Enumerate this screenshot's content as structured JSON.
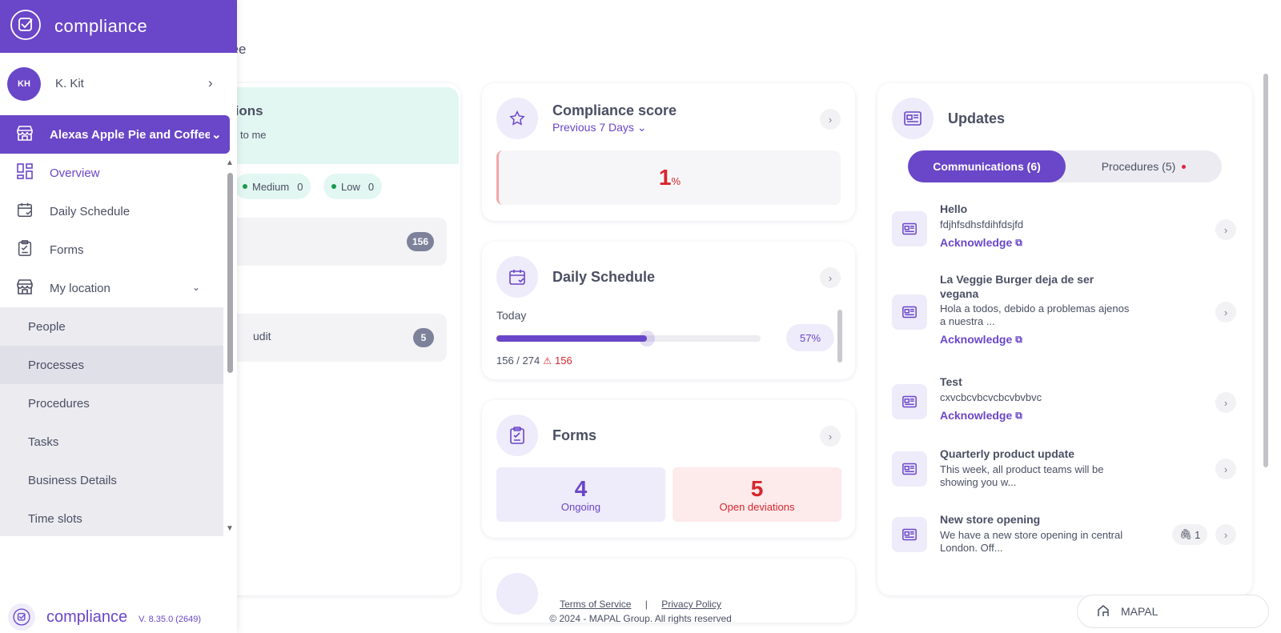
{
  "header": {
    "location_title_partial": "offee"
  },
  "notifications_card": {
    "title_partial": "tions",
    "subtitle_partial": "to me",
    "pills": [
      {
        "label": "Medium",
        "count": "0"
      },
      {
        "label": "Low",
        "count": "0"
      }
    ],
    "rows": [
      {
        "label": "",
        "count": "156"
      },
      {
        "label": "udit",
        "count": "5"
      }
    ]
  },
  "compliance_score": {
    "title": "Compliance score",
    "period": "Previous 7 Days",
    "value": "1",
    "unit": "%"
  },
  "daily_schedule": {
    "title": "Daily Schedule",
    "today_label": "Today",
    "progress": 0.57,
    "progress_label": "57%",
    "done_total": "156 / 274",
    "warning_count": "156"
  },
  "forms": {
    "title": "Forms",
    "ongoing_count": "4",
    "ongoing_label": "Ongoing",
    "deviations_count": "5",
    "deviations_label": "Open deviations"
  },
  "updates": {
    "title": "Updates",
    "tab_active": "Communications (6)",
    "tab_inactive": "Procedures (5)",
    "items": [
      {
        "title": "Hello",
        "body": "fdjhfsdhsfdihfdsjfd",
        "ack": "Acknowledge"
      },
      {
        "title": "La Veggie Burger deja de ser vegana",
        "body": "Hola a todos, debido a problemas ajenos a nuestra ...",
        "ack": "Acknowledge"
      },
      {
        "title": "Test",
        "body": "cxvcbcvbcvcbcvbvbvc",
        "ack": "Acknowledge"
      },
      {
        "title": "Quarterly product update",
        "body": "This week, all product teams will be showing you w..."
      },
      {
        "title": "New store opening",
        "body": "We have a new store opening in central London. Off...",
        "attachments": "1"
      }
    ]
  },
  "footer": {
    "terms": "Terms of Service",
    "separator": "|",
    "privacy": "Privacy Policy",
    "copyright": "© 2024 - MAPAL Group. All rights reserved",
    "mapal_button": "MAPAL"
  },
  "sidebar": {
    "brand": "compliance",
    "user_initials": "KH",
    "user_name": "K. Kit",
    "location": "Alexas Apple Pie and Coffee",
    "nav": [
      {
        "label": "Overview"
      },
      {
        "label": "Daily Schedule"
      },
      {
        "label": "Forms"
      },
      {
        "label": "My location"
      }
    ],
    "sub_items": [
      "People",
      "Processes",
      "Procedures",
      "Tasks",
      "Business Details",
      "Time slots"
    ],
    "version_brand": "compliance",
    "version": "V. 8.35.0 (2649)"
  },
  "colors": {
    "accent": "#6a46c8",
    "danger": "#d7262f",
    "mint": "#e3f7f2"
  }
}
